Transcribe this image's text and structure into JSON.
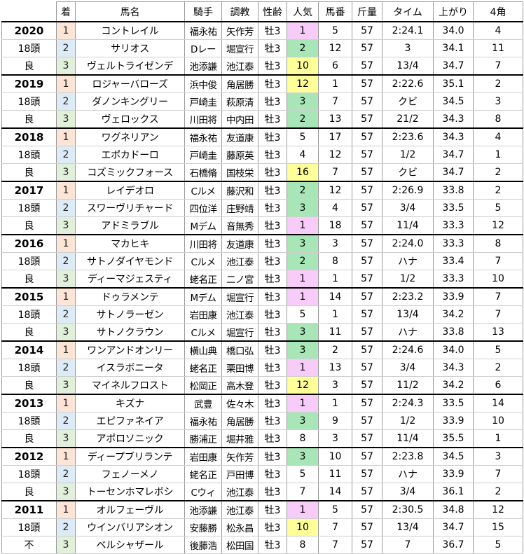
{
  "headers": [
    "",
    "着",
    "馬名",
    "騎手",
    "調教",
    "性齢",
    "人気",
    "馬番",
    "斤量",
    "タイム",
    "上がり",
    "4角"
  ],
  "colors": {
    "pos": {
      "1": "#fce4d6",
      "2": "#ddebf7",
      "3": "#e2efda"
    },
    "pop_pink": "#f8ccf8",
    "pop_green": "#a8e6b8",
    "pop_yellow": "#ffff99"
  },
  "rows": [
    {
      "year": "2020",
      "pos": "1",
      "name": "コントレイル",
      "jockey": "福永祐",
      "trainer": "矢作芳",
      "sexage": "牡3",
      "pop": "1",
      "pop_color": "pink",
      "num": "5",
      "weight": "57",
      "time": "2:24.1",
      "last3f": "34.0",
      "corner4": "4"
    },
    {
      "year": "18頭",
      "pos": "2",
      "name": "サリオス",
      "jockey": "Dレー",
      "trainer": "堀宣行",
      "sexage": "牡3",
      "pop": "2",
      "pop_color": "green",
      "num": "12",
      "weight": "57",
      "time": "3",
      "last3f": "34.1",
      "corner4": "11"
    },
    {
      "year": "良",
      "pos": "3",
      "name": "ヴェルトライゼンデ",
      "jockey": "池添謙",
      "trainer": "池江泰",
      "sexage": "牡3",
      "pop": "10",
      "pop_color": "yellow",
      "num": "6",
      "weight": "57",
      "time": "13/4",
      "last3f": "34.7",
      "corner4": "7"
    },
    {
      "year": "2019",
      "pos": "1",
      "name": "ロジャーバローズ",
      "jockey": "浜中俊",
      "trainer": "角居勝",
      "sexage": "牡3",
      "pop": "12",
      "pop_color": "yellow",
      "num": "1",
      "weight": "57",
      "time": "2:22.6",
      "last3f": "35.1",
      "corner4": "2"
    },
    {
      "year": "18頭",
      "pos": "2",
      "name": "ダノンキングリー",
      "jockey": "戸崎圭",
      "trainer": "萩原清",
      "sexage": "牡3",
      "pop": "3",
      "pop_color": "green",
      "num": "7",
      "weight": "57",
      "time": "クビ",
      "last3f": "34.5",
      "corner4": "3"
    },
    {
      "year": "良",
      "pos": "3",
      "name": "ヴェロックス",
      "jockey": "川田将",
      "trainer": "中内田",
      "sexage": "牡3",
      "pop": "2",
      "pop_color": "green",
      "num": "13",
      "weight": "57",
      "time": "21/2",
      "last3f": "34.3",
      "corner4": "8"
    },
    {
      "year": "2018",
      "pos": "1",
      "name": "ワグネリアン",
      "jockey": "福永祐",
      "trainer": "友道康",
      "sexage": "牡3",
      "pop": "5",
      "pop_color": "",
      "num": "17",
      "weight": "57",
      "time": "2:23.6",
      "last3f": "34.3",
      "corner4": "4"
    },
    {
      "year": "18頭",
      "pos": "2",
      "name": "エポカドーロ",
      "jockey": "戸崎圭",
      "trainer": "藤原英",
      "sexage": "牡3",
      "pop": "4",
      "pop_color": "",
      "num": "12",
      "weight": "57",
      "time": "1/2",
      "last3f": "34.7",
      "corner4": "1"
    },
    {
      "year": "良",
      "pos": "3",
      "name": "コズミックフォース",
      "jockey": "石橋脩",
      "trainer": "国枝栄",
      "sexage": "牡3",
      "pop": "16",
      "pop_color": "yellow",
      "num": "7",
      "weight": "57",
      "time": "クビ",
      "last3f": "34.7",
      "corner4": "2"
    },
    {
      "year": "2017",
      "pos": "1",
      "name": "レイデオロ",
      "jockey": "Cルメ",
      "trainer": "藤沢和",
      "sexage": "牡3",
      "pop": "2",
      "pop_color": "green",
      "num": "12",
      "weight": "57",
      "time": "2:26.9",
      "last3f": "33.8",
      "corner4": "2"
    },
    {
      "year": "18頭",
      "pos": "2",
      "name": "スワーヴリチャード",
      "jockey": "四位洋",
      "trainer": "庄野靖",
      "sexage": "牡3",
      "pop": "3",
      "pop_color": "green",
      "num": "4",
      "weight": "57",
      "time": "3/4",
      "last3f": "33.5",
      "corner4": "5"
    },
    {
      "year": "良",
      "pos": "3",
      "name": "アドミラブル",
      "jockey": "Mデム",
      "trainer": "音無秀",
      "sexage": "牡3",
      "pop": "1",
      "pop_color": "pink",
      "num": "18",
      "weight": "57",
      "time": "11/4",
      "last3f": "33.3",
      "corner4": "12"
    },
    {
      "year": "2016",
      "pos": "1",
      "name": "マカヒキ",
      "jockey": "川田将",
      "trainer": "友道康",
      "sexage": "牡3",
      "pop": "3",
      "pop_color": "green",
      "num": "3",
      "weight": "57",
      "time": "2:24.0",
      "last3f": "33.3",
      "corner4": "8"
    },
    {
      "year": "18頭",
      "pos": "2",
      "name": "サトノダイヤモンド",
      "jockey": "Cルメ",
      "trainer": "池江泰",
      "sexage": "牡3",
      "pop": "2",
      "pop_color": "green",
      "num": "8",
      "weight": "57",
      "time": "ハナ",
      "last3f": "33.4",
      "corner4": "7"
    },
    {
      "year": "良",
      "pos": "3",
      "name": "ディーマジェスティ",
      "jockey": "蛯名正",
      "trainer": "二ノ宮",
      "sexage": "牡3",
      "pop": "1",
      "pop_color": "pink",
      "num": "1",
      "weight": "57",
      "time": "1/2",
      "last3f": "33.3",
      "corner4": "10"
    },
    {
      "year": "2015",
      "pos": "1",
      "name": "ドゥラメンテ",
      "jockey": "Mデム",
      "trainer": "堀宣行",
      "sexage": "牡3",
      "pop": "1",
      "pop_color": "pink",
      "num": "14",
      "weight": "57",
      "time": "2:23.2",
      "last3f": "33.9",
      "corner4": "7"
    },
    {
      "year": "18頭",
      "pos": "2",
      "name": "サトノラーゼン",
      "jockey": "岩田康",
      "trainer": "池江泰",
      "sexage": "牡3",
      "pop": "5",
      "pop_color": "",
      "num": "1",
      "weight": "57",
      "time": "13/4",
      "last3f": "34.2",
      "corner4": "7"
    },
    {
      "year": "良",
      "pos": "3",
      "name": "サトノクラウン",
      "jockey": "Cルメ",
      "trainer": "堀宣行",
      "sexage": "牡3",
      "pop": "3",
      "pop_color": "green",
      "num": "11",
      "weight": "57",
      "time": "ハナ",
      "last3f": "33.8",
      "corner4": "13"
    },
    {
      "year": "2014",
      "pos": "1",
      "name": "ワンアンドオンリー",
      "jockey": "横山典",
      "trainer": "橋口弘",
      "sexage": "牡3",
      "pop": "3",
      "pop_color": "green",
      "num": "2",
      "weight": "57",
      "time": "2:24.6",
      "last3f": "34.0",
      "corner4": "5"
    },
    {
      "year": "18頭",
      "pos": "2",
      "name": "イスラボニータ",
      "jockey": "蛯名正",
      "trainer": "栗田博",
      "sexage": "牡3",
      "pop": "1",
      "pop_color": "pink",
      "num": "13",
      "weight": "57",
      "time": "3/4",
      "last3f": "34.3",
      "corner4": "2"
    },
    {
      "year": "良",
      "pos": "3",
      "name": "マイネルフロスト",
      "jockey": "松岡正",
      "trainer": "高木登",
      "sexage": "牡3",
      "pop": "12",
      "pop_color": "yellow",
      "num": "3",
      "weight": "57",
      "time": "11/2",
      "last3f": "34.2",
      "corner4": "6"
    },
    {
      "year": "2013",
      "pos": "1",
      "name": "キズナ",
      "jockey": "武豊",
      "trainer": "佐々木",
      "sexage": "牡3",
      "pop": "1",
      "pop_color": "pink",
      "num": "1",
      "weight": "57",
      "time": "2:24.3",
      "last3f": "33.5",
      "corner4": "14"
    },
    {
      "year": "18頭",
      "pos": "2",
      "name": "エピファネイア",
      "jockey": "福永祐",
      "trainer": "角居勝",
      "sexage": "牡3",
      "pop": "3",
      "pop_color": "green",
      "num": "9",
      "weight": "57",
      "time": "1/2",
      "last3f": "33.9",
      "corner4": "10"
    },
    {
      "year": "良",
      "pos": "3",
      "name": "アポロソニック",
      "jockey": "勝浦正",
      "trainer": "堀井雅",
      "sexage": "牡3",
      "pop": "8",
      "pop_color": "",
      "num": "3",
      "weight": "57",
      "time": "11/4",
      "last3f": "35.5",
      "corner4": "1"
    },
    {
      "year": "2012",
      "pos": "1",
      "name": "ディープブリランテ",
      "jockey": "岩田康",
      "trainer": "矢作芳",
      "sexage": "牡3",
      "pop": "3",
      "pop_color": "green",
      "num": "10",
      "weight": "57",
      "time": "2:23.8",
      "last3f": "34.5",
      "corner4": "3"
    },
    {
      "year": "18頭",
      "pos": "2",
      "name": "フェノーメノ",
      "jockey": "蛯名正",
      "trainer": "戸田博",
      "sexage": "牡3",
      "pop": "5",
      "pop_color": "",
      "num": "11",
      "weight": "57",
      "time": "ハナ",
      "last3f": "33.9",
      "corner4": "7"
    },
    {
      "year": "良",
      "pos": "3",
      "name": "トーセンホマレボシ",
      "jockey": "Cウィ",
      "trainer": "池江泰",
      "sexage": "牡3",
      "pop": "7",
      "pop_color": "",
      "num": "14",
      "weight": "57",
      "time": "3/4",
      "last3f": "36.1",
      "corner4": "2"
    },
    {
      "year": "2011",
      "pos": "1",
      "name": "オルフェーヴル",
      "jockey": "池添謙",
      "trainer": "池江泰",
      "sexage": "牡3",
      "pop": "1",
      "pop_color": "pink",
      "num": "5",
      "weight": "57",
      "time": "2:30.5",
      "last3f": "34.8",
      "corner4": "12"
    },
    {
      "year": "18頭",
      "pos": "2",
      "name": "ウインバリアシオン",
      "jockey": "安藤勝",
      "trainer": "松永昌",
      "sexage": "牡3",
      "pop": "10",
      "pop_color": "yellow",
      "num": "7",
      "weight": "57",
      "time": "13/4",
      "last3f": "34.7",
      "corner4": "15"
    },
    {
      "year": "不",
      "pos": "3",
      "name": "ベルシャザール",
      "jockey": "後藤浩",
      "trainer": "松田国",
      "sexage": "牡3",
      "pop": "8",
      "pop_color": "",
      "num": "7",
      "weight": "57",
      "time": "7",
      "last3f": "36.7",
      "corner4": "5"
    }
  ]
}
